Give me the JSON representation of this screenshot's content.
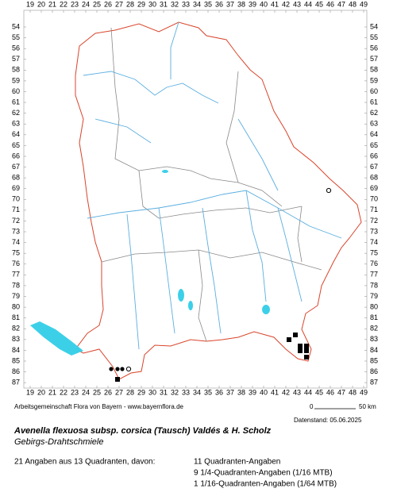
{
  "grid": {
    "columns": [
      19,
      20,
      21,
      22,
      23,
      24,
      25,
      26,
      27,
      28,
      29,
      30,
      31,
      32,
      33,
      34,
      35,
      36,
      37,
      38,
      39,
      40,
      41,
      42,
      43,
      44,
      45,
      46,
      47,
      48,
      49
    ],
    "rows": [
      54,
      55,
      56,
      57,
      58,
      59,
      60,
      61,
      62,
      63,
      64,
      65,
      66,
      67,
      68,
      69,
      70,
      71,
      72,
      73,
      74,
      75,
      76,
      77,
      78,
      79,
      80,
      81,
      82,
      83,
      84,
      85,
      86,
      87
    ]
  },
  "credit": "Arbeitsgemeinschaft Flora von Bayern - www.bayernflora.de",
  "scale": {
    "start": "0",
    "end": "50 km"
  },
  "date": "Datenstand: 05.06.2025",
  "title": "Avenella flexuosa subsp. corsica (Tausch) Valdés & H. Scholz",
  "subtitle": "Gebirgs-Drahtschmiele",
  "summary": "21 Angaben aus 13 Quadranten, davon:",
  "breakdown": [
    "11 Quadranten-Angaben",
    "9 1/4-Quadranten-Angaben (1/16 MTB)",
    "1 1/16-Quadranten-Angaben (1/64 MTB)"
  ]
}
